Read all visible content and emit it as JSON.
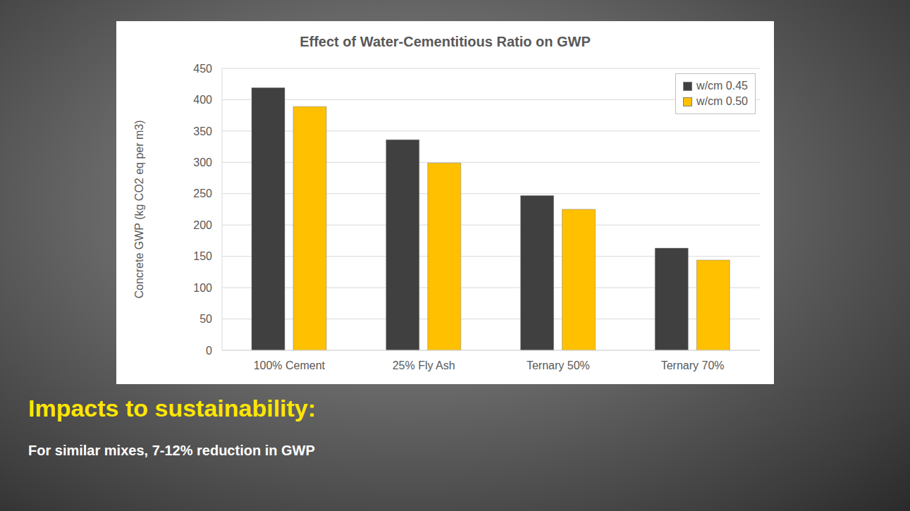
{
  "chart_data": {
    "type": "bar",
    "title": "Effect of Water-Cementitious Ratio on GWP",
    "y_label": "Concrete GWP (kg CO2 eq per m3)",
    "categories": [
      "100% Cement",
      "25% Fly Ash",
      "Ternary 50%",
      "Ternary 70%"
    ],
    "series": [
      {
        "name": "w/cm 0.45",
        "color": "#404040",
        "values": [
          419,
          336,
          247,
          163
        ]
      },
      {
        "name": "w/cm 0.50",
        "color": "#ffc000",
        "values": [
          389,
          299,
          225,
          144
        ]
      }
    ],
    "ylim": [
      0,
      450
    ],
    "yticks": [
      0,
      50,
      100,
      150,
      200,
      250,
      300,
      350,
      400,
      450
    ],
    "grid": true,
    "legend": "upper right",
    "annotations": [
      "Impacts to sustainability:",
      "For similar mixes, 7-12% reduction in GWP"
    ]
  }
}
